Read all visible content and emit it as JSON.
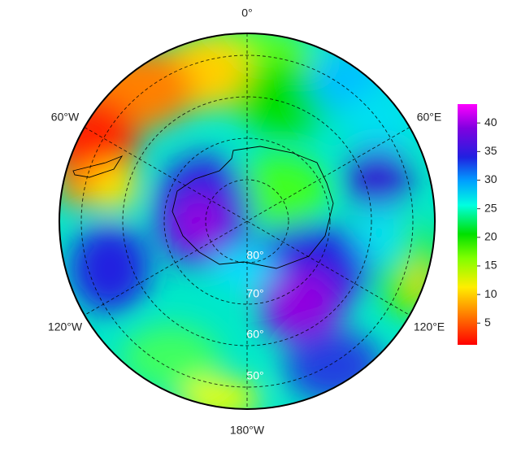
{
  "map": {
    "longitude_labels": [
      "0°",
      "60°E",
      "120°E",
      "180°W",
      "120°W",
      "60°W"
    ],
    "latitude_labels": [
      "80°",
      "70°",
      "60°",
      "50°"
    ],
    "colorbar": {
      "range": [
        1.2,
        43.3
      ],
      "ticks": [
        5,
        10,
        15,
        20,
        25,
        30,
        35,
        40
      ]
    }
  }
}
